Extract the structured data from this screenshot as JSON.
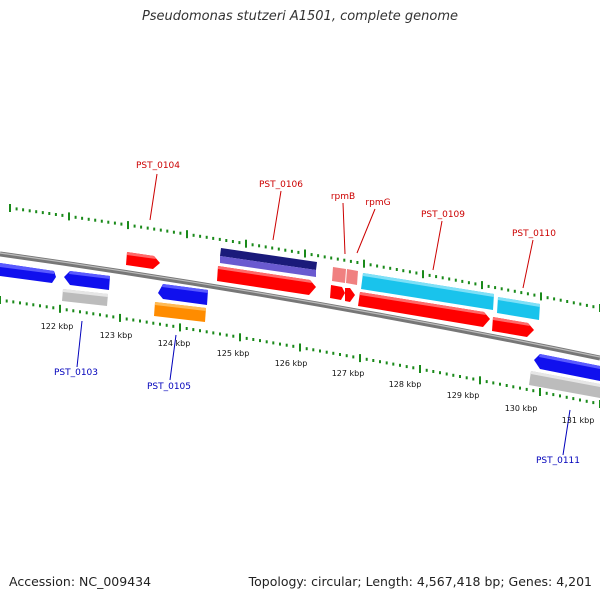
{
  "title": "Pseudomonas stutzeri A1501, complete genome",
  "footer": {
    "accession": "Accession: NC_009434",
    "summary": "Topology: circular; Length: 4,567,418 bp; Genes: 4,201"
  },
  "colors": {
    "label_forward": "#cc0000",
    "label_reverse": "#0000bb",
    "backbone": "#7a7a7a",
    "tick": "#1a8a1a",
    "gene_red": "#ff0000",
    "gene_blue": "#1010ee",
    "gene_cyan": "#19c3ec",
    "gene_navy": "#1a1a7a",
    "gene_purple": "#6a5ad0",
    "gene_grey": "#bcbcbc",
    "gene_orange": "#ff8c00",
    "gene_pink": "#f08080"
  },
  "kbp_labels": [
    "122 kbp",
    "123 kbp",
    "124 kbp",
    "125 kbp",
    "126 kbp",
    "127 kbp",
    "128 kbp",
    "129 kbp",
    "130 kbp",
    "131 kbp"
  ],
  "gene_labels": {
    "forward": [
      "PST_0104",
      "PST_0106",
      "rpmB",
      "rpmG",
      "PST_0109",
      "PST_0110"
    ],
    "reverse": [
      "PST_0103",
      "PST_0105",
      "PST_0111"
    ]
  }
}
